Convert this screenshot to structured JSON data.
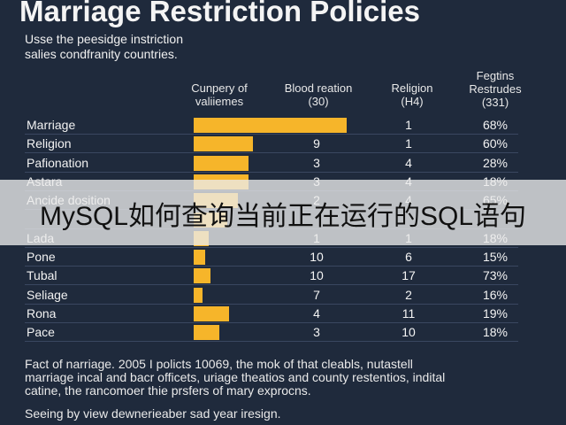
{
  "chart_data": {
    "type": "table",
    "title": "Marriage Restriction Policies",
    "subtitle": "Usse the peesidge instriction\nsalies condfranity countries.",
    "columns": [
      "Cunpery of\nvaliiemes",
      "Blood reation\n(30)",
      "Religion\n(H4)",
      "Fegtins\nRestrudes\n(331)"
    ],
    "rows": [
      {
        "label": "Marriage",
        "bar": 9,
        "blood": "",
        "religion": "1",
        "restr": "68%"
      },
      {
        "label": "Religion",
        "bar": 3.5,
        "blood": "9",
        "religion": "1",
        "restr": "60%"
      },
      {
        "label": "Pafionation",
        "bar": 3.2,
        "blood": "3",
        "religion": "4",
        "restr": "28%"
      },
      {
        "label": "Astara",
        "bar": 3.2,
        "blood": "3",
        "religion": "4",
        "restr": "18%"
      },
      {
        "label": "Ancide dosition",
        "bar": 2.6,
        "blood": "2",
        "religion": "4",
        "restr": "65%"
      },
      {
        "label": "",
        "bar": 2.0,
        "blood": "",
        "religion": "",
        "restr": ""
      },
      {
        "label": "Lada",
        "bar": 0.9,
        "blood": "1",
        "religion": "1",
        "restr": "18%"
      },
      {
        "label": "Pone",
        "bar": 0.7,
        "blood": "10",
        "religion": "6",
        "restr": "15%"
      },
      {
        "label": "Tubal",
        "bar": 1.0,
        "blood": "10",
        "religion": "17",
        "restr": "73%"
      },
      {
        "label": "Seliage",
        "bar": 0.5,
        "blood": "7",
        "religion": "2",
        "restr": "16%"
      },
      {
        "label": "Rona",
        "bar": 2.1,
        "blood": "4",
        "religion": "11",
        "restr": "19%"
      },
      {
        "label": "Pace",
        "bar": 1.5,
        "blood": "3",
        "religion": "10",
        "restr": "18%"
      }
    ],
    "bar_max": 9,
    "bar_color": "#f6b52a",
    "footer": "Fact of narriage. 2005 I policts 10069, the mok of that cleabls, nutastell\nmarriage incal and bacr officets, uriage theatios and county restentios, indital\ncatine, the rancomoer thie prsfers of mary exprocns.",
    "caption": "Seeing by view dewnerieaber sad year iresign."
  },
  "overlay": {
    "text": "MySQL如何查询当前正在运行的SQL语句"
  }
}
